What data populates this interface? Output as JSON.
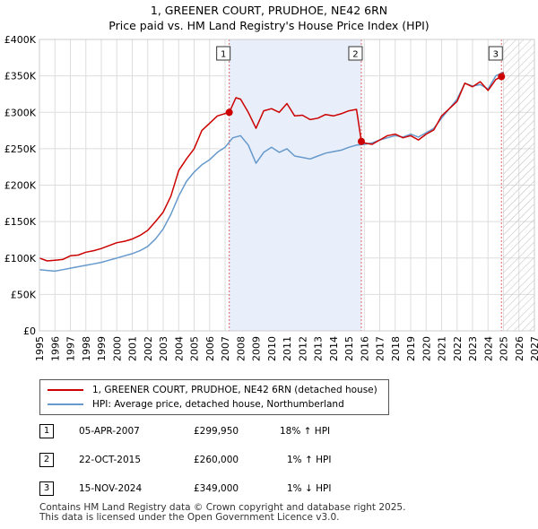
{
  "chart_data": {
    "type": "line",
    "title": "1, GREENER COURT, PRUDHOE, NE42 6RN",
    "subtitle": "Price paid vs. HM Land Registry's House Price Index (HPI)",
    "xlim": [
      1995,
      2027
    ],
    "ylim": [
      0,
      400000
    ],
    "x_ticks": [
      "1995",
      "1996",
      "1997",
      "1998",
      "1999",
      "2000",
      "2001",
      "2002",
      "2003",
      "2004",
      "2005",
      "2006",
      "2007",
      "2008",
      "2009",
      "2010",
      "2011",
      "2012",
      "2013",
      "2014",
      "2015",
      "2016",
      "2017",
      "2018",
      "2019",
      "2020",
      "2021",
      "2022",
      "2023",
      "2024",
      "2025",
      "2026",
      "2027"
    ],
    "y_ticks": [
      {
        "value": 0,
        "label": "£0"
      },
      {
        "value": 50000,
        "label": "£50K"
      },
      {
        "value": 100000,
        "label": "£100K"
      },
      {
        "value": 150000,
        "label": "£150K"
      },
      {
        "value": 200000,
        "label": "£200K"
      },
      {
        "value": 250000,
        "label": "£250K"
      },
      {
        "value": 300000,
        "label": "£300K"
      },
      {
        "value": 350000,
        "label": "£350K"
      },
      {
        "value": 400000,
        "label": "£400K"
      }
    ],
    "shaded_period": [
      2007.27,
      2015.81
    ],
    "future_from": 2025.0,
    "series": [
      {
        "name": "1, GREENER COURT, PRUDHOE, NE42 6RN (detached house)",
        "color": "#cc0000",
        "x": [
          1995,
          1995.5,
          1996,
          1996.5,
          1997,
          1997.5,
          1998,
          1998.5,
          1999,
          1999.5,
          2000,
          2000.5,
          2001,
          2001.5,
          2002,
          2002.5,
          2003,
          2003.5,
          2004,
          2004.5,
          2005,
          2005.5,
          2006,
          2006.5,
          2007.27,
          2007.7,
          2008,
          2008.5,
          2009,
          2009.5,
          2010,
          2010.5,
          2011,
          2011.5,
          2012,
          2012.5,
          2013,
          2013.5,
          2014,
          2014.5,
          2015,
          2015.5,
          2015.81,
          2016,
          2016.5,
          2017,
          2017.5,
          2018,
          2018.5,
          2019,
          2019.5,
          2020,
          2020.5,
          2021,
          2021.5,
          2022,
          2022.5,
          2023,
          2023.5,
          2024,
          2024.5,
          2024.87,
          2025
        ],
        "y": [
          100000,
          96000,
          97000,
          98000,
          103000,
          104000,
          108000,
          110000,
          113000,
          117000,
          121000,
          123000,
          126000,
          131000,
          138000,
          150000,
          163000,
          185000,
          220000,
          236000,
          250000,
          275000,
          285000,
          295000,
          299950,
          320000,
          318000,
          300000,
          278000,
          302000,
          305000,
          300000,
          312000,
          295000,
          296000,
          290000,
          292000,
          297000,
          295000,
          298000,
          302000,
          304000,
          260000,
          258000,
          256000,
          262000,
          268000,
          270000,
          265000,
          268000,
          262000,
          270000,
          276000,
          295000,
          305000,
          315000,
          340000,
          335000,
          342000,
          330000,
          345000,
          349000,
          355000
        ]
      },
      {
        "name": "HPI: Average price, detached house, Northumberland",
        "color": "#6699cc",
        "x": [
          1995,
          1995.5,
          1996,
          1996.5,
          1997,
          1997.5,
          1998,
          1998.5,
          1999,
          1999.5,
          2000,
          2000.5,
          2001,
          2001.5,
          2002,
          2002.5,
          2003,
          2003.5,
          2004,
          2004.5,
          2005,
          2005.5,
          2006,
          2006.5,
          2007,
          2007.5,
          2008,
          2008.5,
          2009,
          2009.5,
          2010,
          2010.5,
          2011,
          2011.5,
          2012,
          2012.5,
          2013,
          2013.5,
          2014,
          2014.5,
          2015,
          2015.5,
          2016,
          2016.5,
          2017,
          2017.5,
          2018,
          2018.5,
          2019,
          2019.5,
          2020,
          2020.5,
          2021,
          2021.5,
          2022,
          2022.5,
          2023,
          2023.5,
          2024,
          2024.5,
          2025
        ],
        "y": [
          84000,
          83000,
          82000,
          84000,
          86000,
          88000,
          90000,
          92000,
          94000,
          97000,
          100000,
          103000,
          106000,
          110000,
          116000,
          126000,
          140000,
          160000,
          185000,
          205000,
          218000,
          228000,
          235000,
          245000,
          252000,
          265000,
          268000,
          255000,
          230000,
          245000,
          252000,
          245000,
          250000,
          240000,
          238000,
          236000,
          240000,
          244000,
          246000,
          248000,
          252000,
          255000,
          256000,
          258000,
          262000,
          265000,
          268000,
          266000,
          270000,
          266000,
          272000,
          278000,
          292000,
          305000,
          318000,
          340000,
          336000,
          338000,
          332000,
          350000,
          355000
        ]
      }
    ],
    "sales": [
      {
        "label": "1",
        "x": 2007.27,
        "y": 299950
      },
      {
        "label": "2",
        "x": 2015.81,
        "y": 260000
      },
      {
        "label": "3",
        "x": 2024.87,
        "y": 349000
      }
    ]
  },
  "legend": {
    "property": "1, GREENER COURT, PRUDHOE, NE42 6RN (detached house)",
    "hpi": "HPI: Average price, detached house, Northumberland"
  },
  "sales_table": [
    {
      "num": "1",
      "date": "05-APR-2007",
      "price": "£299,950",
      "hpi": "18% ↑ HPI"
    },
    {
      "num": "2",
      "date": "22-OCT-2015",
      "price": "£260,000",
      "hpi": "1% ↑ HPI"
    },
    {
      "num": "3",
      "date": "15-NOV-2024",
      "price": "£349,000",
      "hpi": "1% ↓ HPI"
    }
  ],
  "footer": {
    "line1": "Contains HM Land Registry data © Crown copyright and database right 2025.",
    "line2": "This data is licensed under the Open Government Licence v3.0."
  }
}
